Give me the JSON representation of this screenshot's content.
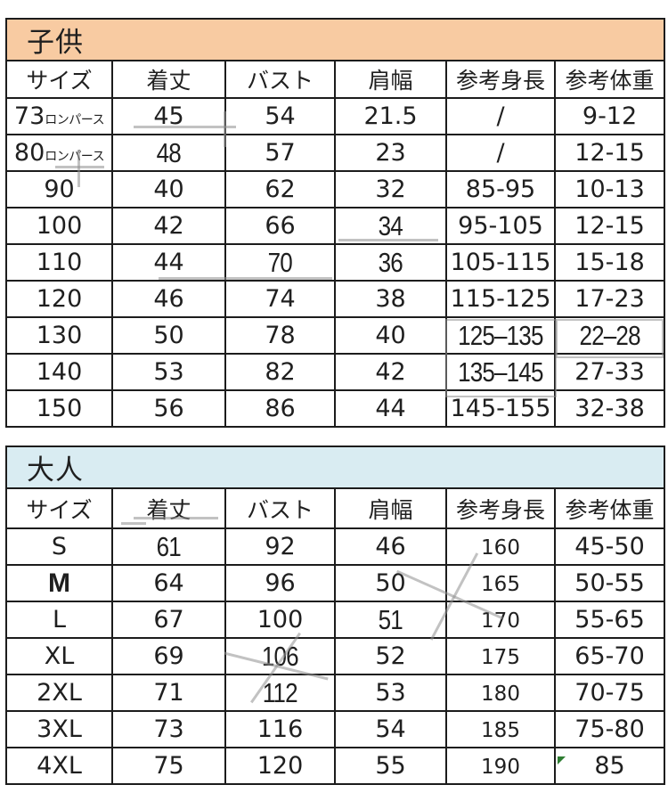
{
  "page": {
    "background": "#ffffff",
    "border_color": "#1c1c1c"
  },
  "tables": [
    {
      "id": "kids",
      "title": "子供",
      "header_bg": "#F8CBA2",
      "columns": [
        "サイズ",
        "着丈",
        "バスト",
        "肩幅",
        "参考身長",
        "参考体重"
      ],
      "rows": [
        {
          "cells": [
            {
              "t": "73",
              "suffix": "ロンパース"
            },
            "45",
            "54",
            "21.5",
            "/",
            "9-12"
          ]
        },
        {
          "cells": [
            {
              "t": "80",
              "suffix": "ロンパース"
            },
            {
              "t": "48",
              "s": "patched"
            },
            "57",
            "23",
            "/",
            "12-15"
          ]
        },
        {
          "cells": [
            "90",
            "40",
            "62",
            "32",
            "85-95",
            "10-13"
          ]
        },
        {
          "cells": [
            "100",
            "42",
            "66",
            {
              "t": "34",
              "s": "patched"
            },
            "95-105",
            "12-15"
          ]
        },
        {
          "cells": [
            "110",
            "44",
            {
              "t": "70",
              "s": "patched"
            },
            {
              "t": "36",
              "s": "patched"
            },
            "105-115",
            "15-18"
          ]
        },
        {
          "cells": [
            "120",
            "46",
            "74",
            "38",
            "115-125",
            "17-23"
          ]
        },
        {
          "cells": [
            "130",
            "50",
            "78",
            "40",
            {
              "t": "125–135",
              "s": "patched"
            },
            {
              "t": "22–28",
              "s": "patched"
            }
          ]
        },
        {
          "cells": [
            "140",
            "53",
            "82",
            "42",
            {
              "t": "135–145",
              "s": "patched"
            },
            "27-33"
          ]
        },
        {
          "cells": [
            "150",
            "56",
            "86",
            "44",
            "145-155",
            "32-38"
          ]
        }
      ]
    },
    {
      "id": "adult",
      "title": "大人",
      "header_bg": "#D9ECF2",
      "columns": [
        "サイズ",
        "着丈",
        "バスト",
        "肩幅",
        "参考身長",
        "参考体重"
      ],
      "rows": [
        {
          "cells": [
            "S",
            {
              "t": "61",
              "s": "patched"
            },
            "92",
            "46",
            {
              "t": "160",
              "s": "small"
            },
            "45-50"
          ]
        },
        {
          "cells": [
            {
              "t": "M",
              "s": "bold"
            },
            "64",
            "96",
            "50",
            {
              "t": "165",
              "s": "small"
            },
            "50-55"
          ]
        },
        {
          "cells": [
            "L",
            "67",
            "100",
            {
              "t": "51",
              "s": "patched"
            },
            {
              "t": "170",
              "s": "small"
            },
            "55-65"
          ]
        },
        {
          "cells": [
            "XL",
            "69",
            {
              "t": "106",
              "s": "patched"
            },
            "52",
            {
              "t": "175",
              "s": "small"
            },
            "65-70"
          ]
        },
        {
          "cells": [
            "2XL",
            "71",
            {
              "t": "112",
              "s": "patched"
            },
            "53",
            {
              "t": "180",
              "s": "small"
            },
            "70-75"
          ]
        },
        {
          "cells": [
            "3XL",
            "73",
            "116",
            "54",
            {
              "t": "185",
              "s": "small"
            },
            "75-80"
          ]
        },
        {
          "cells": [
            "4XL",
            "75",
            "120",
            "55",
            {
              "t": "190",
              "s": "small"
            },
            "85"
          ]
        }
      ]
    }
  ]
}
